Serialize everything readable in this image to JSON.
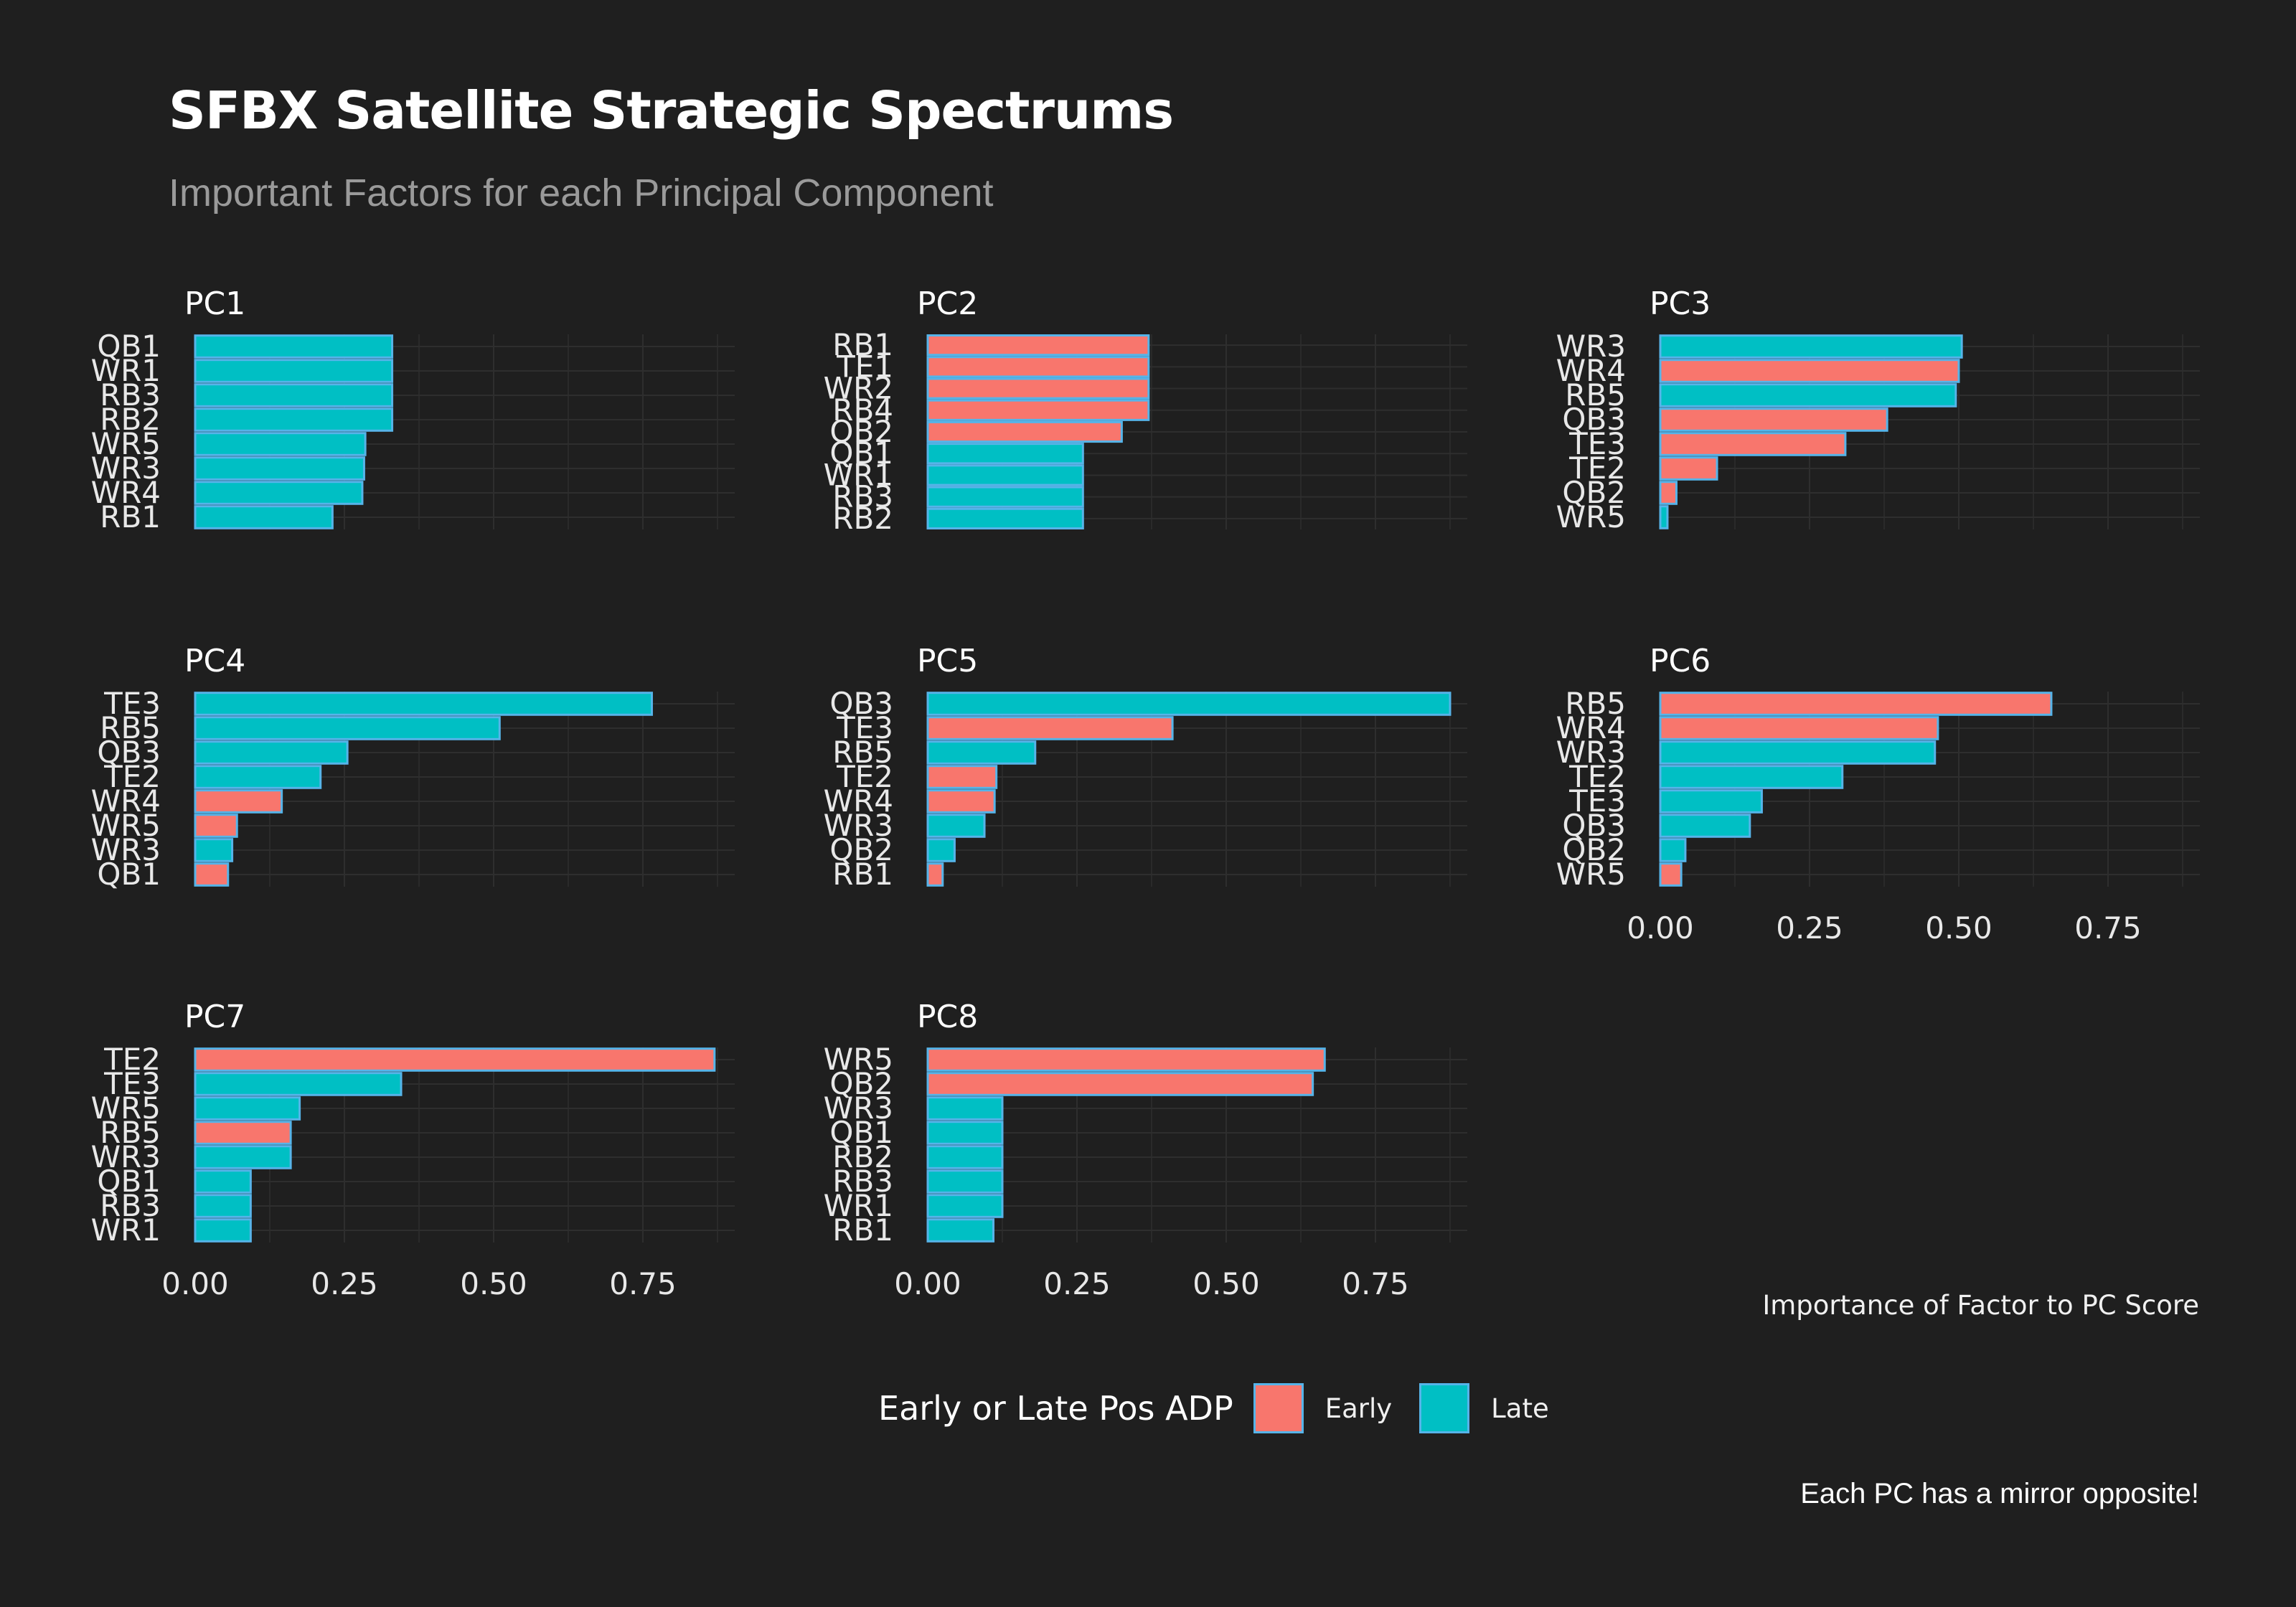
{
  "title": "SFBX Satellite Strategic Spectrums",
  "subtitle": "Important Factors for each Principal Component",
  "caption": "Each PC has a mirror opposite!",
  "colors": {
    "background": "#1f1f1f",
    "Early": "#f8766d",
    "Late": "#00bfc4",
    "bar_outline": "#56b4e9",
    "grid": "#2e2e2e"
  },
  "legend": {
    "title": "Early or Late Pos ADP",
    "items": [
      {
        "key": "Early",
        "label": "Early"
      },
      {
        "key": "Late",
        "label": "Late"
      }
    ]
  },
  "chart_data": {
    "type": "bar",
    "orientation": "horizontal",
    "facets": [
      "PC1",
      "PC2",
      "PC3",
      "PC4",
      "PC5",
      "PC6",
      "PC7",
      "PC8"
    ],
    "xlabel": "Importance of Factor to PC Score",
    "xlim": [
      0,
      0.9
    ],
    "xticks": [
      "0.00",
      "0.25",
      "0.50",
      "0.75"
    ],
    "grid": true,
    "legend_position": "bottom",
    "panels": [
      {
        "name": "PC1",
        "bars": [
          {
            "label": "QB1",
            "value": 0.33,
            "group": "Late"
          },
          {
            "label": "WR1",
            "value": 0.33,
            "group": "Late"
          },
          {
            "label": "RB3",
            "value": 0.33,
            "group": "Late"
          },
          {
            "label": "RB2",
            "value": 0.33,
            "group": "Late"
          },
          {
            "label": "WR5",
            "value": 0.285,
            "group": "Late"
          },
          {
            "label": "WR3",
            "value": 0.283,
            "group": "Late"
          },
          {
            "label": "WR4",
            "value": 0.28,
            "group": "Late"
          },
          {
            "label": "RB1",
            "value": 0.23,
            "group": "Late"
          }
        ]
      },
      {
        "name": "PC2",
        "bars": [
          {
            "label": "RB1",
            "value": 0.37,
            "group": "Early"
          },
          {
            "label": "TE1",
            "value": 0.37,
            "group": "Early"
          },
          {
            "label": "WR2",
            "value": 0.37,
            "group": "Early"
          },
          {
            "label": "RB4",
            "value": 0.37,
            "group": "Early"
          },
          {
            "label": "QB2",
            "value": 0.325,
            "group": "Early"
          },
          {
            "label": "QB1",
            "value": 0.26,
            "group": "Late"
          },
          {
            "label": "WR1",
            "value": 0.26,
            "group": "Late"
          },
          {
            "label": "RB3",
            "value": 0.26,
            "group": "Late"
          },
          {
            "label": "RB2",
            "value": 0.26,
            "group": "Late"
          }
        ]
      },
      {
        "name": "PC3",
        "bars": [
          {
            "label": "WR3",
            "value": 0.505,
            "group": "Late"
          },
          {
            "label": "WR4",
            "value": 0.5,
            "group": "Early"
          },
          {
            "label": "RB5",
            "value": 0.495,
            "group": "Late"
          },
          {
            "label": "QB3",
            "value": 0.38,
            "group": "Early"
          },
          {
            "label": "TE3",
            "value": 0.31,
            "group": "Early"
          },
          {
            "label": "TE2",
            "value": 0.095,
            "group": "Early"
          },
          {
            "label": "QB2",
            "value": 0.027,
            "group": "Early"
          },
          {
            "label": "WR5",
            "value": 0.012,
            "group": "Late"
          }
        ]
      },
      {
        "name": "PC4",
        "bars": [
          {
            "label": "TE3",
            "value": 0.765,
            "group": "Late"
          },
          {
            "label": "RB5",
            "value": 0.51,
            "group": "Late"
          },
          {
            "label": "QB3",
            "value": 0.255,
            "group": "Late"
          },
          {
            "label": "TE2",
            "value": 0.21,
            "group": "Late"
          },
          {
            "label": "WR4",
            "value": 0.145,
            "group": "Early"
          },
          {
            "label": "WR5",
            "value": 0.07,
            "group": "Early"
          },
          {
            "label": "WR3",
            "value": 0.062,
            "group": "Late"
          },
          {
            "label": "QB1",
            "value": 0.055,
            "group": "Early"
          }
        ]
      },
      {
        "name": "PC5",
        "bars": [
          {
            "label": "QB3",
            "value": 0.875,
            "group": "Late"
          },
          {
            "label": "TE3",
            "value": 0.41,
            "group": "Early"
          },
          {
            "label": "RB5",
            "value": 0.18,
            "group": "Late"
          },
          {
            "label": "TE2",
            "value": 0.115,
            "group": "Early"
          },
          {
            "label": "WR4",
            "value": 0.112,
            "group": "Early"
          },
          {
            "label": "WR3",
            "value": 0.095,
            "group": "Late"
          },
          {
            "label": "QB2",
            "value": 0.045,
            "group": "Late"
          },
          {
            "label": "RB1",
            "value": 0.025,
            "group": "Early"
          }
        ]
      },
      {
        "name": "PC6",
        "bars": [
          {
            "label": "RB5",
            "value": 0.655,
            "group": "Early"
          },
          {
            "label": "WR4",
            "value": 0.465,
            "group": "Early"
          },
          {
            "label": "WR3",
            "value": 0.46,
            "group": "Late"
          },
          {
            "label": "TE2",
            "value": 0.305,
            "group": "Late"
          },
          {
            "label": "TE3",
            "value": 0.17,
            "group": "Late"
          },
          {
            "label": "QB3",
            "value": 0.15,
            "group": "Late"
          },
          {
            "label": "QB2",
            "value": 0.042,
            "group": "Late"
          },
          {
            "label": "WR5",
            "value": 0.035,
            "group": "Early"
          }
        ]
      },
      {
        "name": "PC7",
        "bars": [
          {
            "label": "TE2",
            "value": 0.87,
            "group": "Early"
          },
          {
            "label": "TE3",
            "value": 0.345,
            "group": "Late"
          },
          {
            "label": "WR5",
            "value": 0.175,
            "group": "Late"
          },
          {
            "label": "RB5",
            "value": 0.16,
            "group": "Early"
          },
          {
            "label": "WR3",
            "value": 0.16,
            "group": "Late"
          },
          {
            "label": "QB1",
            "value": 0.093,
            "group": "Late"
          },
          {
            "label": "RB3",
            "value": 0.093,
            "group": "Late"
          },
          {
            "label": "WR1",
            "value": 0.093,
            "group": "Late"
          }
        ]
      },
      {
        "name": "PC8",
        "bars": [
          {
            "label": "WR5",
            "value": 0.665,
            "group": "Early"
          },
          {
            "label": "QB2",
            "value": 0.645,
            "group": "Early"
          },
          {
            "label": "WR3",
            "value": 0.125,
            "group": "Late"
          },
          {
            "label": "QB1",
            "value": 0.125,
            "group": "Late"
          },
          {
            "label": "RB2",
            "value": 0.125,
            "group": "Late"
          },
          {
            "label": "RB3",
            "value": 0.125,
            "group": "Late"
          },
          {
            "label": "WR1",
            "value": 0.125,
            "group": "Late"
          },
          {
            "label": "RB1",
            "value": 0.11,
            "group": "Late"
          }
        ]
      }
    ]
  }
}
